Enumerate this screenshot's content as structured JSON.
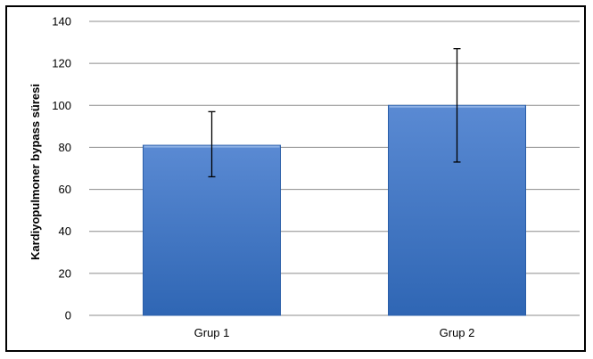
{
  "chart_data": {
    "type": "bar",
    "title": "",
    "xlabel": "",
    "ylabel": "Kardiyopulmoner bypass süresi",
    "categories": [
      "Grup 1",
      "Grup 2"
    ],
    "values": [
      81,
      100
    ],
    "error_bars": [
      {
        "lower": 66,
        "upper": 97
      },
      {
        "lower": 73,
        "upper": 127
      }
    ],
    "ylim": [
      0,
      140
    ],
    "yticks": [
      0,
      20,
      40,
      60,
      80,
      100,
      120,
      140
    ],
    "grid": true,
    "legend": "none",
    "colors": {
      "bar_top": "#5a8ad3",
      "bar_bottom": "#2f66b4",
      "bar_edge": "#2a5ea8",
      "grid": "#8c8c8c",
      "error_bar": "#000000"
    }
  }
}
